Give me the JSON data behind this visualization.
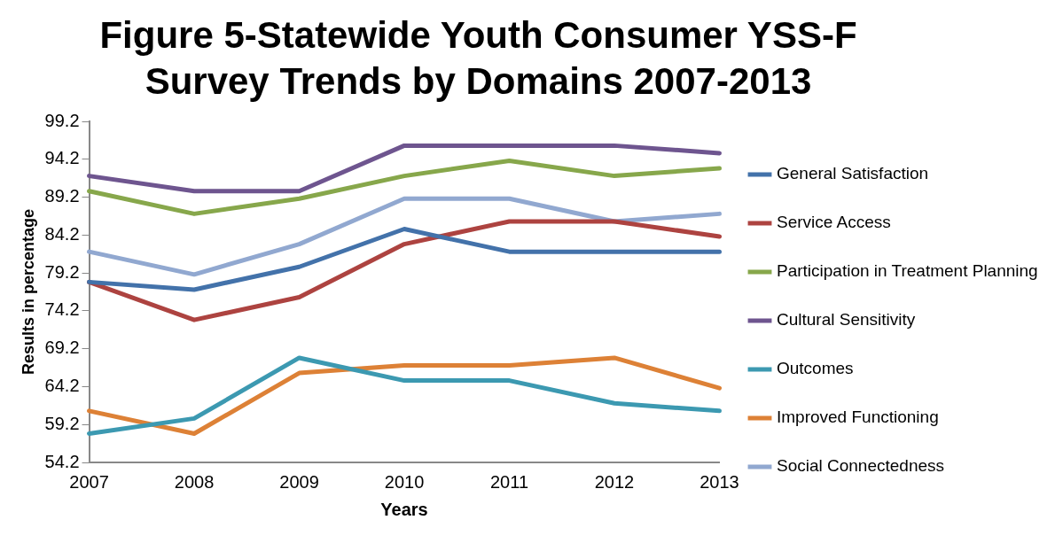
{
  "chart_data": {
    "type": "line",
    "title": "Figure 5-Statewide Youth Consumer YSS-F Survey Trends by Domains 2007-2013",
    "xlabel": "Years",
    "ylabel": "Results in percentage",
    "categories": [
      "2007",
      "2008",
      "2009",
      "2010",
      "2011",
      "2012",
      "2013"
    ],
    "ylim": [
      54.2,
      99.2
    ],
    "yticks": [
      54.2,
      59.2,
      64.2,
      69.2,
      74.2,
      79.2,
      84.2,
      89.2,
      94.2,
      99.2
    ],
    "grid": false,
    "legend": "right",
    "marker": "none",
    "line_style": "solid",
    "series": [
      {
        "name": "General Satisfaction",
        "color": "#4372aa",
        "values": [
          78,
          77,
          80,
          85,
          82,
          82,
          82
        ]
      },
      {
        "name": "Service Access",
        "color": "#ad4340",
        "values": [
          78,
          73,
          76,
          83,
          86,
          86,
          84
        ]
      },
      {
        "name": "Participation in Treatment Planning",
        "color": "#87a74b",
        "values": [
          90,
          87,
          89,
          92,
          94,
          92,
          93
        ]
      },
      {
        "name": "Cultural Sensitivity",
        "color": "#6e558f",
        "values": [
          92,
          90,
          90,
          96,
          96,
          96,
          95
        ]
      },
      {
        "name": "Outcomes",
        "color": "#3c99b1",
        "values": [
          58,
          60,
          68,
          65,
          65,
          62,
          61
        ]
      },
      {
        "name": "Improved Functioning",
        "color": "#dd8136",
        "values": [
          61,
          58,
          66,
          67,
          67,
          68,
          64
        ]
      },
      {
        "name": "Social Connectedness",
        "color": "#91a8d0",
        "values": [
          82,
          79,
          83,
          89,
          89,
          86,
          87
        ]
      }
    ]
  }
}
